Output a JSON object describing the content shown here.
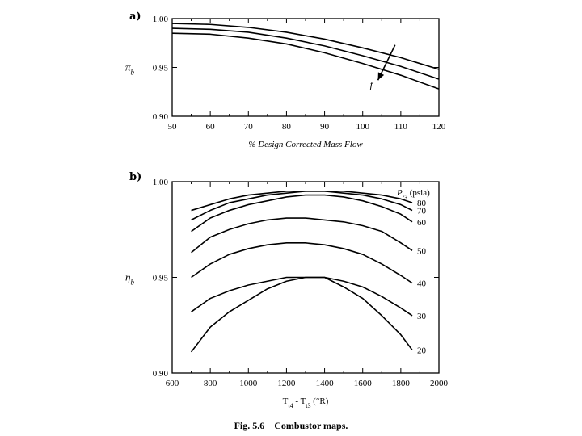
{
  "caption": {
    "figure_number": "Fig. 5.6",
    "text": "Combustor maps."
  },
  "chart_data": [
    {
      "type": "line",
      "panel_label": "a)",
      "xlabel": "% Design Corrected Mass Flow",
      "ylabel": "π_b",
      "xlim": [
        50,
        120
      ],
      "ylim": [
        0.9,
        1.0
      ],
      "x_ticks": [
        50,
        60,
        70,
        80,
        90,
        100,
        110,
        120
      ],
      "y_ticks": [
        "0.90",
        "0.95",
        "1.00"
      ],
      "grid": false,
      "annotations": [
        {
          "text": "f",
          "arrow_from": [
            108.5,
            0.973
          ],
          "arrow_to": [
            104,
            0.937
          ]
        }
      ],
      "series": [
        {
          "x": [
            50,
            60,
            70,
            80,
            90,
            100,
            110,
            120
          ],
          "y": [
            0.995,
            0.994,
            0.991,
            0.986,
            0.979,
            0.97,
            0.96,
            0.948
          ]
        },
        {
          "x": [
            50,
            60,
            70,
            80,
            90,
            100,
            110,
            120
          ],
          "y": [
            0.99,
            0.989,
            0.986,
            0.98,
            0.972,
            0.962,
            0.951,
            0.938
          ]
        },
        {
          "x": [
            50,
            60,
            70,
            80,
            90,
            100,
            110,
            120
          ],
          "y": [
            0.985,
            0.984,
            0.98,
            0.974,
            0.965,
            0.954,
            0.942,
            0.928
          ]
        }
      ]
    },
    {
      "type": "line",
      "panel_label": "b)",
      "xlabel": "T_t4 - T_t3 (°R)",
      "ylabel": "η_b",
      "xlim": [
        600,
        2000
      ],
      "ylim": [
        0.9,
        1.0
      ],
      "x_ticks": [
        600,
        800,
        1000,
        1200,
        1400,
        1600,
        1800,
        2000
      ],
      "y_ticks": [
        "0.90",
        "0.95",
        "1.00"
      ],
      "grid": false,
      "legend_title": "P_t3 (psia)",
      "series": [
        {
          "name": "80",
          "x": [
            700,
            800,
            900,
            1000,
            1100,
            1200,
            1300,
            1400,
            1500,
            1600,
            1700,
            1800,
            1860
          ],
          "y": [
            0.985,
            0.988,
            0.991,
            0.993,
            0.994,
            0.995,
            0.995,
            0.995,
            0.995,
            0.994,
            0.993,
            0.991,
            0.989
          ]
        },
        {
          "name": "70",
          "x": [
            700,
            800,
            900,
            1000,
            1100,
            1200,
            1300,
            1400,
            1500,
            1600,
            1700,
            1800,
            1860
          ],
          "y": [
            0.98,
            0.985,
            0.989,
            0.991,
            0.993,
            0.994,
            0.995,
            0.995,
            0.994,
            0.993,
            0.991,
            0.988,
            0.985
          ]
        },
        {
          "name": "60",
          "x": [
            700,
            800,
            900,
            1000,
            1100,
            1200,
            1300,
            1400,
            1500,
            1600,
            1700,
            1800,
            1860
          ],
          "y": [
            0.974,
            0.981,
            0.985,
            0.988,
            0.99,
            0.992,
            0.993,
            0.993,
            0.992,
            0.99,
            0.987,
            0.983,
            0.979
          ]
        },
        {
          "name": "50",
          "x": [
            700,
            800,
            900,
            1000,
            1100,
            1200,
            1300,
            1400,
            1500,
            1600,
            1700,
            1800,
            1860
          ],
          "y": [
            0.963,
            0.971,
            0.975,
            0.978,
            0.98,
            0.981,
            0.981,
            0.98,
            0.979,
            0.977,
            0.974,
            0.968,
            0.964
          ]
        },
        {
          "name": "40",
          "x": [
            700,
            800,
            900,
            1000,
            1100,
            1200,
            1300,
            1400,
            1500,
            1600,
            1700,
            1800,
            1860
          ],
          "y": [
            0.95,
            0.957,
            0.962,
            0.965,
            0.967,
            0.968,
            0.968,
            0.967,
            0.965,
            0.962,
            0.957,
            0.951,
            0.947
          ]
        },
        {
          "name": "30",
          "x": [
            700,
            800,
            900,
            1000,
            1100,
            1200,
            1300,
            1400,
            1500,
            1600,
            1700,
            1800,
            1860
          ],
          "y": [
            0.932,
            0.939,
            0.943,
            0.946,
            0.948,
            0.95,
            0.95,
            0.95,
            0.948,
            0.945,
            0.94,
            0.934,
            0.93
          ]
        },
        {
          "name": "20",
          "x": [
            700,
            800,
            900,
            1000,
            1100,
            1200,
            1300,
            1400,
            1500,
            1600,
            1700,
            1800,
            1860
          ],
          "y": [
            0.911,
            0.924,
            0.932,
            0.938,
            0.944,
            0.948,
            0.95,
            0.95,
            0.945,
            0.939,
            0.93,
            0.92,
            0.912
          ]
        }
      ]
    }
  ]
}
